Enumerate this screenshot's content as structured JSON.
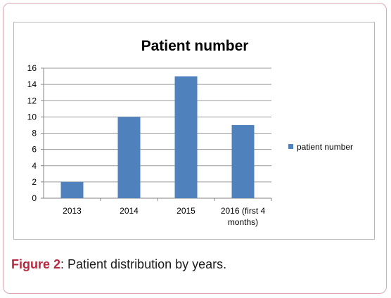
{
  "chart_data": {
    "type": "bar",
    "title": "Patient number",
    "categories": [
      "2013",
      "2014",
      "2015",
      "2016 (first 4 months)"
    ],
    "series": [
      {
        "name": "patient number",
        "values": [
          2,
          10,
          15,
          9
        ],
        "color": "#4f81bd"
      }
    ],
    "ylim": [
      0,
      16
    ],
    "yticks": [
      "0",
      "2",
      "4",
      "6",
      "8",
      "10",
      "12",
      "14",
      "16"
    ],
    "grid": true,
    "legend_position": "right"
  },
  "caption": {
    "lead": "Figure 2",
    "text": ": Patient distribution by years."
  }
}
